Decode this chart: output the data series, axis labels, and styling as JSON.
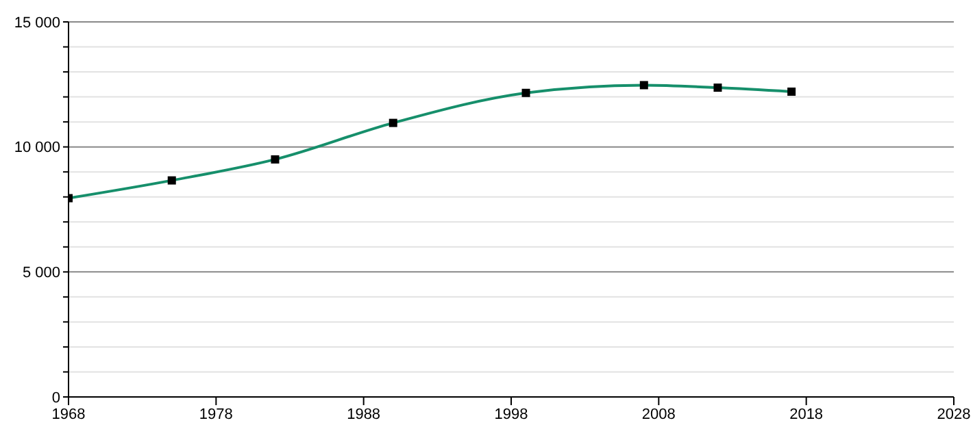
{
  "chart_data": {
    "type": "line",
    "x": [
      1968,
      1975,
      1982,
      1990,
      1999,
      2007,
      2012,
      2017
    ],
    "series": [
      {
        "color": "#168f6b",
        "values": [
          7950,
          8660,
          9500,
          10960,
          12160,
          12470,
          12370,
          12210
        ]
      }
    ],
    "xlim": [
      1968,
      2028
    ],
    "xticks": [
      1968,
      1978,
      1988,
      1998,
      2008,
      2018,
      2028
    ],
    "ylim": [
      0,
      15000
    ],
    "yticks": [
      {
        "value": 0,
        "label": "0"
      },
      {
        "value": 1000,
        "label": null
      },
      {
        "value": 2000,
        "label": null
      },
      {
        "value": 3000,
        "label": null
      },
      {
        "value": 4000,
        "label": null
      },
      {
        "value": 5000,
        "label": "5 000"
      },
      {
        "value": 6000,
        "label": null
      },
      {
        "value": 7000,
        "label": null
      },
      {
        "value": 8000,
        "label": null
      },
      {
        "value": 9000,
        "label": null
      },
      {
        "value": 10000,
        "label": "10 000"
      },
      {
        "value": 11000,
        "label": null
      },
      {
        "value": 12000,
        "label": null
      },
      {
        "value": 13000,
        "label": null
      },
      {
        "value": 14000,
        "label": null
      },
      {
        "value": 15000,
        "label": "15 000"
      }
    ],
    "grid": "y",
    "marker": "square",
    "line_style": "solid"
  }
}
